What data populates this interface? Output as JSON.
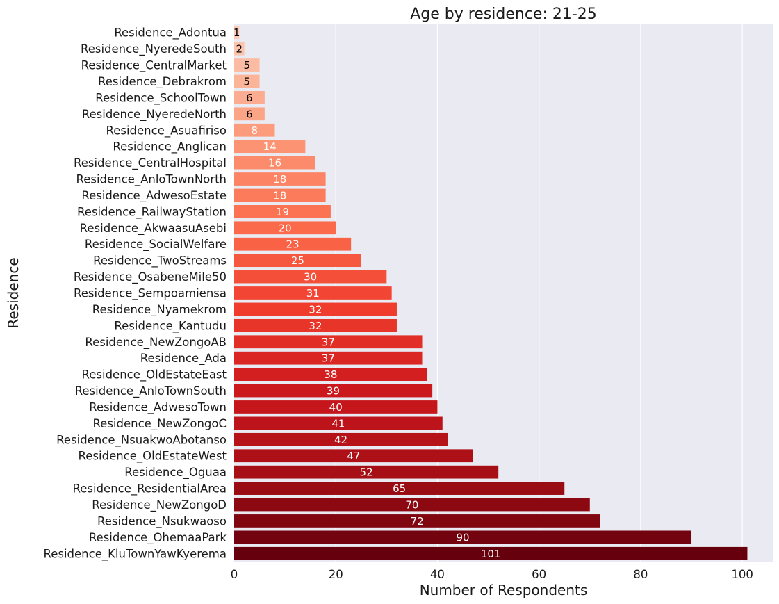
{
  "chart_data": {
    "type": "bar",
    "orientation": "horizontal",
    "title": "Age by residence:  21-25",
    "xlabel": "Number of Respondents",
    "ylabel": "Residence",
    "xlim": [
      0,
      106
    ],
    "xticks": [
      0,
      20,
      40,
      60,
      80,
      100
    ],
    "grid": true,
    "legend": "none",
    "palette": "Reds",
    "colors": {
      "background": "#eaeaf2",
      "grid": "#ffffff",
      "light_label": "#000000",
      "dark_label": "#ffffff"
    },
    "categories": [
      "Residence_Adontua",
      "Residence_NyeredeSouth",
      "Residence_CentralMarket",
      "Residence_Debrakrom",
      "Residence_SchoolTown",
      "Residence_NyeredeNorth",
      "Residence_Asuafiriso",
      "Residence_Anglican",
      "Residence_CentralHospital",
      "Residence_AnloTownNorth",
      "Residence_AdwesoEstate",
      "Residence_RailwayStation",
      "Residence_AkwaasuAsebi",
      "Residence_SocialWelfare",
      "Residence_TwoStreams",
      "Residence_OsabeneMile50",
      "Residence_Sempoamiensa",
      "Residence_Nyamekrom",
      "Residence_Kantudu",
      "Residence_NewZongoAB",
      "Residence_Ada",
      "Residence_OldEstateEast",
      "Residence_AnloTownSouth",
      "Residence_AdwesoTown",
      "Residence_NewZongoC",
      "Residence_NsuakwoAbotanso",
      "Residence_OldEstateWest",
      "Residence_Oguaa",
      "Residence_ResidentialArea",
      "Residence_NewZongoD",
      "Residence_Nsukwaoso",
      "Residence_OhemaaPark",
      "Residence_KluTownYawKyerema"
    ],
    "values": [
      1,
      2,
      5,
      5,
      6,
      6,
      8,
      14,
      16,
      18,
      18,
      19,
      20,
      23,
      25,
      30,
      31,
      32,
      32,
      37,
      37,
      38,
      39,
      40,
      41,
      42,
      47,
      52,
      65,
      70,
      72,
      90,
      101
    ]
  }
}
